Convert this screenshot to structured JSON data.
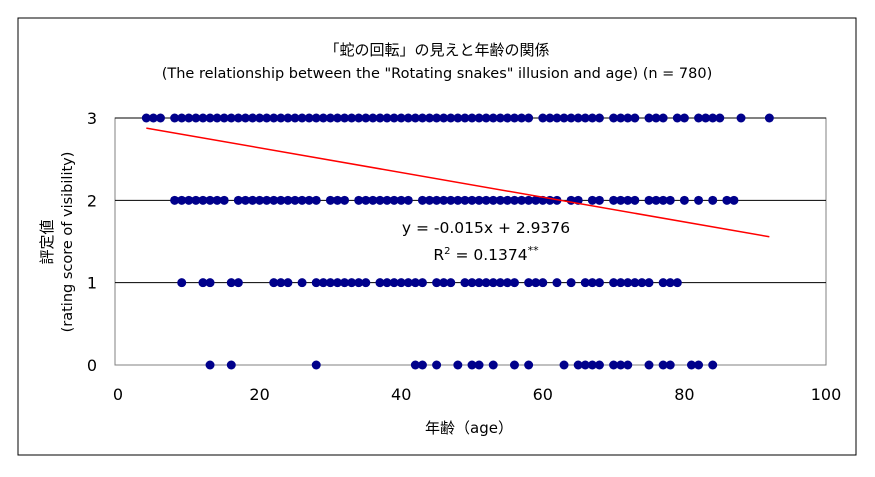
{
  "chart_data": {
    "type": "scatter",
    "title": "「蛇の回転」の見えと年齢の関係",
    "subtitle": "(The relationship between the \"Rotating snakes\" illusion and age) (n = 780)",
    "xlabel": "年齢（age）",
    "ylabel_line1": "評定値",
    "ylabel_line2": "(rating score of visibility)",
    "xlim": [
      0,
      100
    ],
    "ylim": [
      0,
      3
    ],
    "x_ticks": [
      "0",
      "20",
      "40",
      "60",
      "80",
      "100"
    ],
    "y_ticks": [
      "0",
      "1",
      "2",
      "3"
    ],
    "grid": "horizontal",
    "colors": {
      "points": "#00008b",
      "trendline": "#ff0000"
    },
    "regression": {
      "equation": "y = -0.015x + 2.9376",
      "r2_base": "R",
      "r2_exp": "2",
      "r2_value": " = 0.1374",
      "r2_sig": "**",
      "slope": -0.015,
      "intercept": 2.9376,
      "x_range": [
        4,
        92
      ]
    },
    "series": [
      {
        "y": 3,
        "x": [
          4,
          5,
          6,
          8,
          9,
          10,
          11,
          12,
          13,
          14,
          15,
          16,
          17,
          18,
          19,
          20,
          21,
          22,
          23,
          24,
          25,
          26,
          27,
          28,
          29,
          30,
          31,
          32,
          33,
          34,
          35,
          36,
          37,
          38,
          39,
          40,
          41,
          42,
          43,
          44,
          45,
          46,
          47,
          48,
          49,
          50,
          51,
          52,
          53,
          54,
          55,
          56,
          57,
          58,
          60,
          61,
          62,
          63,
          64,
          65,
          66,
          67,
          68,
          70,
          71,
          72,
          73,
          75,
          76,
          77,
          79,
          80,
          82,
          83,
          84,
          85,
          88,
          92
        ]
      },
      {
        "y": 2,
        "x": [
          8,
          9,
          10,
          11,
          12,
          13,
          14,
          15,
          17,
          18,
          19,
          20,
          21,
          22,
          23,
          24,
          25,
          26,
          27,
          28,
          30,
          31,
          32,
          34,
          35,
          36,
          37,
          38,
          39,
          40,
          41,
          43,
          44,
          45,
          46,
          47,
          48,
          49,
          50,
          51,
          52,
          53,
          54,
          55,
          56,
          57,
          58,
          59,
          60,
          61,
          62,
          64,
          65,
          67,
          68,
          70,
          71,
          72,
          73,
          75,
          76,
          77,
          78,
          80,
          82,
          84,
          86,
          87
        ]
      },
      {
        "y": 1,
        "x": [
          9,
          12,
          13,
          16,
          17,
          22,
          23,
          24,
          26,
          28,
          29,
          30,
          31,
          32,
          33,
          34,
          35,
          37,
          38,
          39,
          40,
          41,
          42,
          43,
          45,
          46,
          47,
          49,
          50,
          51,
          52,
          53,
          54,
          55,
          56,
          58,
          59,
          60,
          62,
          64,
          66,
          67,
          68,
          70,
          71,
          72,
          73,
          74,
          75,
          77,
          78,
          79
        ]
      },
      {
        "y": 0,
        "x": [
          13,
          16,
          28,
          42,
          43,
          45,
          48,
          50,
          51,
          53,
          56,
          58,
          63,
          65,
          66,
          67,
          68,
          70,
          71,
          72,
          75,
          77,
          78,
          81,
          82,
          84
        ]
      }
    ]
  }
}
